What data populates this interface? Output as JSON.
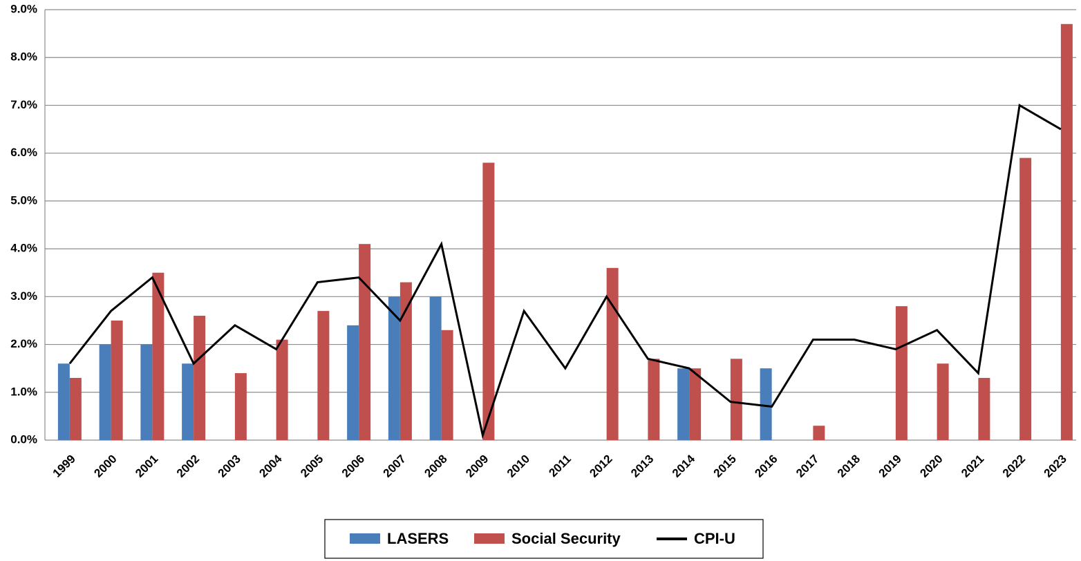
{
  "chart_data": {
    "type": "bar-line",
    "categories": [
      "1999",
      "2000",
      "2001",
      "2002",
      "2003",
      "2004",
      "2005",
      "2006",
      "2007",
      "2008",
      "2009",
      "2010",
      "2011",
      "2012",
      "2013",
      "2014",
      "2015",
      "2016",
      "2017",
      "2018",
      "2019",
      "2020",
      "2021",
      "2022",
      "2023"
    ],
    "series": [
      {
        "name": "LASERS",
        "color": "#4a7ebb",
        "type": "bar",
        "values": [
          1.6,
          2.0,
          2.0,
          1.6,
          null,
          null,
          null,
          2.4,
          3.0,
          3.0,
          null,
          null,
          null,
          null,
          null,
          1.5,
          null,
          1.5,
          null,
          null,
          null,
          null,
          null,
          null,
          null
        ]
      },
      {
        "name": "Social Security",
        "color": "#c0504d",
        "type": "bar",
        "values": [
          1.3,
          2.5,
          3.5,
          2.6,
          1.4,
          2.1,
          2.7,
          4.1,
          3.3,
          2.3,
          5.8,
          null,
          null,
          3.6,
          1.7,
          1.5,
          1.7,
          null,
          0.3,
          null,
          2.8,
          1.6,
          1.3,
          5.9,
          8.7
        ]
      },
      {
        "name": "CPI-U",
        "color": "#000000",
        "type": "line",
        "values": [
          1.6,
          2.7,
          3.4,
          1.6,
          2.4,
          1.9,
          3.3,
          3.4,
          2.5,
          4.1,
          0.1,
          2.7,
          1.5,
          3.0,
          1.7,
          1.5,
          0.8,
          0.7,
          2.1,
          2.1,
          1.9,
          2.3,
          1.4,
          7.0,
          6.5
        ]
      }
    ],
    "ylim": [
      0,
      9
    ],
    "yticks": [
      {
        "value": 0,
        "label": "0.0%"
      },
      {
        "value": 1,
        "label": "1.0%"
      },
      {
        "value": 2,
        "label": "2.0%"
      },
      {
        "value": 3,
        "label": "3.0%"
      },
      {
        "value": 4,
        "label": "4.0%"
      },
      {
        "value": 5,
        "label": "5.0%"
      },
      {
        "value": 6,
        "label": "6.0%"
      },
      {
        "value": 7,
        "label": "7.0%"
      },
      {
        "value": 8,
        "label": "8.0%"
      },
      {
        "value": 9,
        "label": "9.0%"
      }
    ],
    "grid": true,
    "legend": "bottom"
  }
}
